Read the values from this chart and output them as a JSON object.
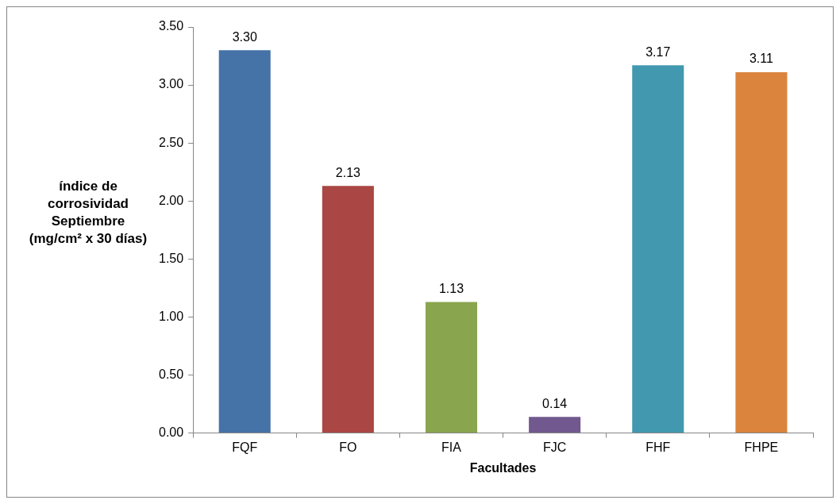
{
  "chart_data": {
    "type": "bar",
    "xlabel": "Facultades",
    "ylabel": "índice de corrosividad Septiembre (mg/cm² x 30 días)",
    "categories": [
      "FQF",
      "FO",
      "FIA",
      "FJC",
      "FHF",
      "FHPE"
    ],
    "values": [
      3.3,
      2.13,
      1.13,
      0.14,
      3.17,
      3.11
    ],
    "colors": [
      "#4572a7",
      "#aa4643",
      "#89a54e",
      "#71588f",
      "#4198af",
      "#db843d"
    ],
    "ylim": [
      0,
      3.5
    ],
    "yticks": [
      {
        "value": 0,
        "label": "0.00"
      },
      {
        "value": 0.5,
        "label": "0.50"
      },
      {
        "value": 1,
        "label": "1.00"
      },
      {
        "value": 1.5,
        "label": "1.50"
      },
      {
        "value": 2,
        "label": "2.00"
      },
      {
        "value": 2.5,
        "label": "2.50"
      },
      {
        "value": 3,
        "label": "3.00"
      },
      {
        "value": 3.5,
        "label": "3.50"
      }
    ],
    "value_labels": [
      "3.30",
      "2.13",
      "1.13",
      "0.14",
      "3.17",
      "3.11"
    ],
    "grid": false,
    "legend": false
  }
}
